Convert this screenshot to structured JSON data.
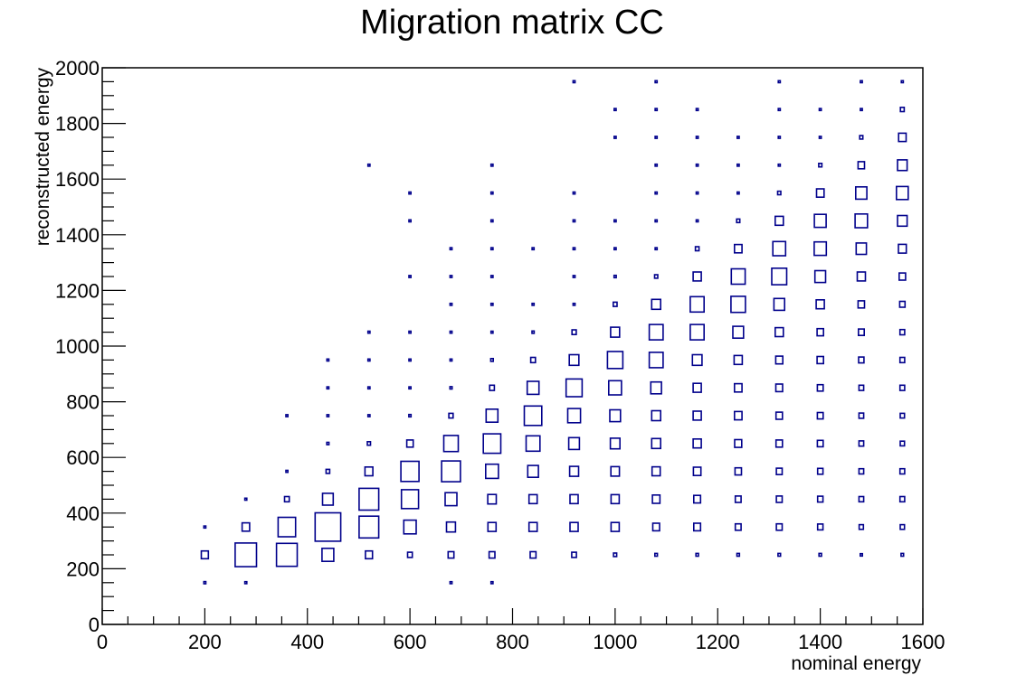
{
  "chart_data": {
    "type": "heatmap",
    "title": "Migration matrix CC",
    "xlabel": "nominal energy",
    "ylabel": "reconstructed energy",
    "xlim": [
      0,
      1600
    ],
    "ylim": [
      0,
      2000
    ],
    "x_ticks": [
      0,
      200,
      400,
      600,
      800,
      1000,
      1200,
      1400,
      1600
    ],
    "y_ticks": [
      0,
      200,
      400,
      600,
      800,
      1000,
      1200,
      1400,
      1600,
      1800,
      2000
    ],
    "x_bin_width": 80,
    "y_bin_width": 100,
    "box_color": "#00008b",
    "x_centers": [
      200,
      280,
      360,
      440,
      520,
      600,
      680,
      760,
      840,
      920,
      1000,
      1080,
      1160,
      1240,
      1320,
      1400,
      1480,
      1560
    ],
    "y_centers": [
      150,
      250,
      350,
      450,
      550,
      650,
      750,
      850,
      950,
      1050,
      1150,
      1250,
      1350,
      1450,
      1550,
      1650,
      1750,
      1850,
      1950
    ],
    "z_rows": [
      [
        0.09,
        0.08,
        0,
        0,
        0,
        0,
        0.05,
        0.05,
        0,
        0,
        0,
        0,
        0,
        0,
        0,
        0,
        0,
        0
      ],
      [
        0.33,
        1,
        0.97,
        0.55,
        0.33,
        0.22,
        0.27,
        0.27,
        0.27,
        0.22,
        0.15,
        0.12,
        0.12,
        0.12,
        0.12,
        0.12,
        0.1,
        0.12
      ],
      [
        0.05,
        0.35,
        0.82,
        1.2,
        0.92,
        0.58,
        0.42,
        0.38,
        0.38,
        0.38,
        0.38,
        0.32,
        0.32,
        0.27,
        0.27,
        0.25,
        0.2,
        0.2
      ],
      [
        0,
        0.05,
        0.22,
        0.5,
        0.92,
        0.8,
        0.55,
        0.4,
        0.38,
        0.38,
        0.38,
        0.35,
        0.32,
        0.27,
        0.27,
        0.25,
        0.22,
        0.22
      ],
      [
        0,
        0,
        0.05,
        0.17,
        0.37,
        0.85,
        0.88,
        0.6,
        0.5,
        0.42,
        0.4,
        0.38,
        0.35,
        0.3,
        0.27,
        0.25,
        0.22,
        0.22
      ],
      [
        0,
        0,
        0,
        0.1,
        0.15,
        0.3,
        0.68,
        0.82,
        0.65,
        0.5,
        0.45,
        0.42,
        0.38,
        0.33,
        0.3,
        0.27,
        0.22,
        0.2
      ],
      [
        0,
        0,
        0.05,
        0.05,
        0.08,
        0.1,
        0.2,
        0.55,
        0.82,
        0.6,
        0.5,
        0.42,
        0.38,
        0.35,
        0.3,
        0.27,
        0.22,
        0.2
      ],
      [
        0,
        0,
        0,
        0.05,
        0.05,
        0.08,
        0.1,
        0.22,
        0.55,
        0.75,
        0.6,
        0.5,
        0.38,
        0.35,
        0.32,
        0.27,
        0.22,
        0.22
      ],
      [
        0,
        0,
        0,
        0.05,
        0.05,
        0.05,
        0.07,
        0.12,
        0.22,
        0.45,
        0.72,
        0.65,
        0.45,
        0.38,
        0.33,
        0.3,
        0.25,
        0.22
      ],
      [
        0,
        0,
        0,
        0,
        0.05,
        0.05,
        0.05,
        0.07,
        0.1,
        0.2,
        0.42,
        0.65,
        0.65,
        0.5,
        0.38,
        0.3,
        0.27,
        0.22
      ],
      [
        0,
        0,
        0,
        0,
        0,
        0,
        0.05,
        0.05,
        0.05,
        0.08,
        0.18,
        0.42,
        0.65,
        0.68,
        0.5,
        0.38,
        0.3,
        0.25
      ],
      [
        0,
        0,
        0,
        0,
        0,
        0.05,
        0.05,
        0.05,
        0,
        0.05,
        0.1,
        0.15,
        0.38,
        0.65,
        0.7,
        0.5,
        0.38,
        0.3
      ],
      [
        0,
        0,
        0,
        0,
        0,
        0,
        0.05,
        0.05,
        0.05,
        0.05,
        0.05,
        0.08,
        0.17,
        0.35,
        0.6,
        0.57,
        0.48,
        0.37
      ],
      [
        0,
        0,
        0,
        0,
        0,
        0.05,
        0,
        0.05,
        0,
        0.05,
        0.05,
        0.05,
        0.07,
        0.15,
        0.38,
        0.55,
        0.58,
        0.45
      ],
      [
        0,
        0,
        0,
        0,
        0,
        0.05,
        0,
        0.05,
        0,
        0.05,
        0,
        0.05,
        0.05,
        0.07,
        0.15,
        0.35,
        0.52,
        0.55
      ],
      [
        0,
        0,
        0,
        0,
        0.05,
        0,
        0,
        0.05,
        0,
        0,
        0,
        0.05,
        0.05,
        0.05,
        0.08,
        0.15,
        0.3,
        0.45
      ],
      [
        0,
        0,
        0,
        0,
        0,
        0,
        0,
        0,
        0,
        0,
        0.05,
        0.05,
        0.05,
        0.05,
        0.05,
        0.08,
        0.15,
        0.35
      ],
      [
        0,
        0,
        0,
        0,
        0,
        0,
        0,
        0,
        0,
        0,
        0.05,
        0.05,
        0.05,
        0,
        0.05,
        0.05,
        0.08,
        0.18
      ],
      [
        0,
        0,
        0,
        0,
        0,
        0,
        0,
        0,
        0,
        0.05,
        0,
        0.05,
        0,
        0,
        0.05,
        0,
        0.06,
        0.08
      ]
    ],
    "grid": false,
    "legend": "none"
  }
}
